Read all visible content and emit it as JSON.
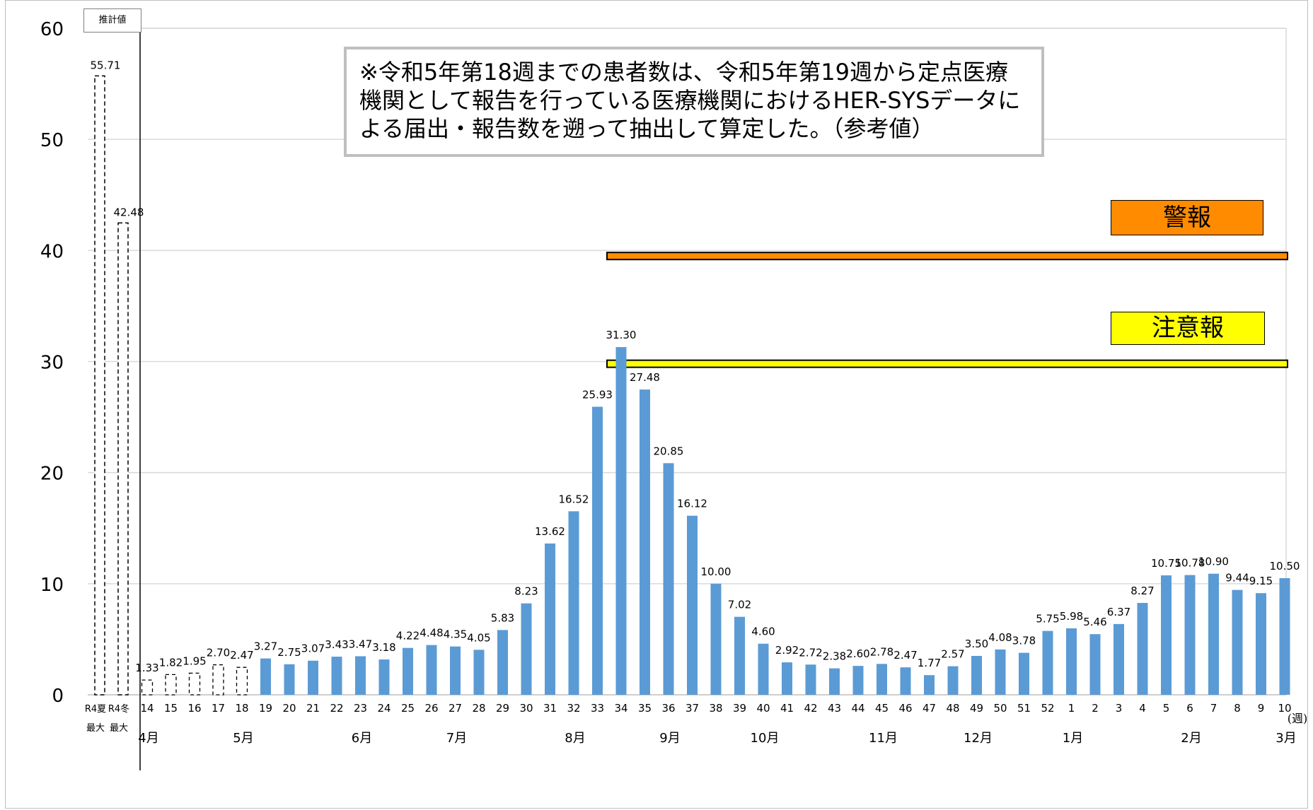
{
  "chart_data": {
    "type": "bar",
    "xlabel": "(週)",
    "ylabel": "",
    "ylim": [
      0,
      60
    ],
    "yticks": [
      0,
      10,
      20,
      30,
      40,
      50,
      60
    ],
    "grid": true,
    "estimate_label": "推計値",
    "note": "※令和5年第18週までの患者数は、令和5年第19週から定点医療機関として報告を行っている医療機関におけるHER-SYSデータによる届出・報告数を遡って抽出して算定した。（参考値）",
    "reference_bars": [
      {
        "line1": "R4夏",
        "line2": "最大",
        "value": 55.71,
        "label": "55.71"
      },
      {
        "line1": "R4冬",
        "line2": "最大",
        "value": 42.48,
        "label": "42.48"
      }
    ],
    "weeks": [
      "14",
      "15",
      "16",
      "17",
      "18",
      "19",
      "20",
      "21",
      "22",
      "23",
      "24",
      "25",
      "26",
      "27",
      "28",
      "29",
      "30",
      "31",
      "32",
      "33",
      "34",
      "35",
      "36",
      "37",
      "38",
      "39",
      "40",
      "41",
      "42",
      "43",
      "44",
      "45",
      "46",
      "47",
      "48",
      "49",
      "50",
      "51",
      "52",
      "1",
      "2",
      "3",
      "4",
      "5",
      "6",
      "7",
      "8",
      "9",
      "10"
    ],
    "values": [
      1.33,
      1.82,
      1.95,
      2.7,
      2.47,
      3.27,
      2.75,
      3.07,
      3.43,
      3.47,
      3.18,
      4.22,
      4.48,
      4.35,
      4.05,
      5.83,
      8.23,
      13.62,
      16.52,
      25.93,
      31.3,
      27.48,
      20.85,
      16.12,
      10.0,
      7.02,
      4.6,
      2.92,
      2.72,
      2.38,
      2.6,
      2.78,
      2.47,
      1.77,
      2.57,
      3.5,
      4.08,
      3.78,
      5.75,
      5.98,
      5.46,
      6.37,
      8.27,
      10.75,
      10.78,
      10.9,
      9.44,
      9.15,
      10.5
    ],
    "value_labels": [
      "1.33",
      "1.82",
      "1.95",
      "2.70",
      "2.47",
      "3.27",
      "2.75",
      "3.07",
      "3.43",
      "3.47",
      "3.18",
      "4.22",
      "4.48",
      "4.35",
      "4.05",
      "5.83",
      "8.23",
      "13.62",
      "16.52",
      "25.93",
      "31.30",
      "27.48",
      "20.85",
      "16.12",
      "10.00",
      "7.02",
      "4.60",
      "2.92",
      "2.72",
      "2.38",
      "2.60",
      "2.78",
      "2.47",
      "1.77",
      "2.57",
      "3.50",
      "4.08",
      "3.78",
      "5.75",
      "5.98",
      "5.46",
      "6.37",
      "8.27",
      "10.75",
      "10.78",
      "10.90",
      "9.44",
      "9.15",
      "10.50"
    ],
    "estimated_count": 5,
    "months": [
      {
        "label": "4月",
        "week": "14"
      },
      {
        "label": "5月",
        "week": "18"
      },
      {
        "label": "6月",
        "week": "23"
      },
      {
        "label": "7月",
        "week": "27"
      },
      {
        "label": "8月",
        "week": "32"
      },
      {
        "label": "9月",
        "week": "36"
      },
      {
        "label": "10月",
        "week": "40"
      },
      {
        "label": "11月",
        "week": "45"
      },
      {
        "label": "12月",
        "week": "49"
      },
      {
        "label": "1月",
        "week": "1"
      },
      {
        "label": "2月",
        "week": "6"
      },
      {
        "label": "3月",
        "week": "10"
      }
    ],
    "thresholds": [
      {
        "label": "警報",
        "value": 39.5,
        "color": "#ff8c00",
        "start_week": "34"
      },
      {
        "label": "注意報",
        "value": 29.8,
        "color": "#ffff00",
        "start_week": "34"
      }
    ],
    "colors": {
      "bar": "#5b9bd5",
      "grid": "#d9d9d9"
    }
  }
}
